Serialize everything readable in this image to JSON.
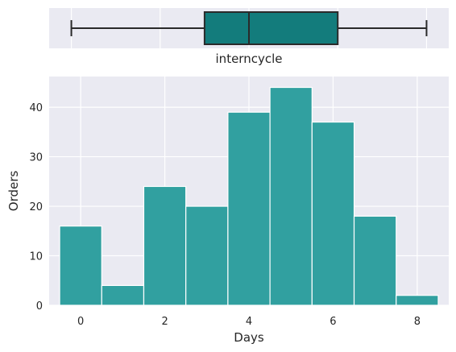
{
  "chart_data": [
    {
      "type": "box",
      "style": "seaborn-darkgrid",
      "xlabel": "interncycle",
      "xlim": [
        -0.5,
        8.5
      ],
      "min": 0,
      "q1": 3,
      "median": 4,
      "q3": 6,
      "max": 8,
      "x_ticks": [
        0,
        2,
        4,
        6,
        8
      ],
      "tick_labels_visible": false,
      "grid": true,
      "colors": {
        "background": "#eaeaf2",
        "grid": "#ffffff",
        "box_fill": "#137c7c",
        "box_edge": "#2a2a2a"
      }
    },
    {
      "type": "bar",
      "style": "seaborn-darkgrid",
      "xlabel": "Days",
      "ylabel": "Orders",
      "bins": [
        {
          "x": 0,
          "value": 16
        },
        {
          "x": 1,
          "value": 4
        },
        {
          "x": 2,
          "value": 24
        },
        {
          "x": 3,
          "value": 20
        },
        {
          "x": 4,
          "value": 39
        },
        {
          "x": 5,
          "value": 44
        },
        {
          "x": 6,
          "value": 37
        },
        {
          "x": 7,
          "value": 18
        },
        {
          "x": 8,
          "value": 2
        }
      ],
      "bin_width": 1,
      "xlim": [
        -0.75,
        8.75
      ],
      "ylim": [
        0,
        46.2
      ],
      "x_ticks": [
        0,
        2,
        4,
        6,
        8
      ],
      "x_tick_labels": [
        "0",
        "2",
        "4",
        "6",
        "8"
      ],
      "y_ticks": [
        0,
        10,
        20,
        30,
        40
      ],
      "y_tick_labels": [
        "0",
        "10",
        "20",
        "30",
        "40"
      ],
      "grid": true,
      "colors": {
        "background": "#eaeaf2",
        "grid": "#ffffff",
        "bar_fill": "#31a0a0",
        "bar_edge": "#ffffff"
      }
    }
  ]
}
